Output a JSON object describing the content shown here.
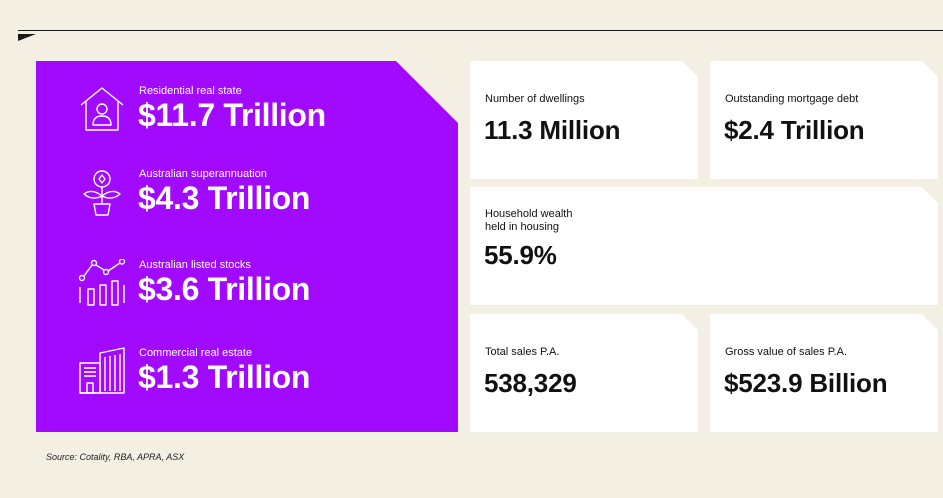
{
  "colors": {
    "background": "#f4efe3",
    "panel_purple": "#a10aff",
    "card_white": "#ffffff",
    "text_dark": "#111111"
  },
  "panel": {
    "stats": [
      {
        "icon": "house-person-icon",
        "label": "Residential real state",
        "value": "$11.7 Trillion"
      },
      {
        "icon": "plant-coin-icon",
        "label": "Australian superannuation",
        "value": "$4.3 Trillion"
      },
      {
        "icon": "bar-line-chart-icon",
        "label": "Australian listed stocks",
        "value": "$3.6 Trillion"
      },
      {
        "icon": "office-buildings-icon",
        "label": "Commercial real estate",
        "value": "$1.3 Trillion"
      }
    ]
  },
  "cards": {
    "dwellings": {
      "label": "Number of dwellings",
      "value": "11.3 Million"
    },
    "mortgage": {
      "label": "Outstanding mortgage debt",
      "value": "$2.4 Trillion"
    },
    "wealth": {
      "label_line1": "Household wealth",
      "label_line2": "held in housing",
      "value": "55.9%"
    },
    "sales": {
      "label": "Total sales P.A.",
      "value": "538,329"
    },
    "gross": {
      "label": "Gross value of sales P.A.",
      "value": "$523.9 Billion"
    }
  },
  "source": "Source: Cotality, RBA, APRA, ASX"
}
